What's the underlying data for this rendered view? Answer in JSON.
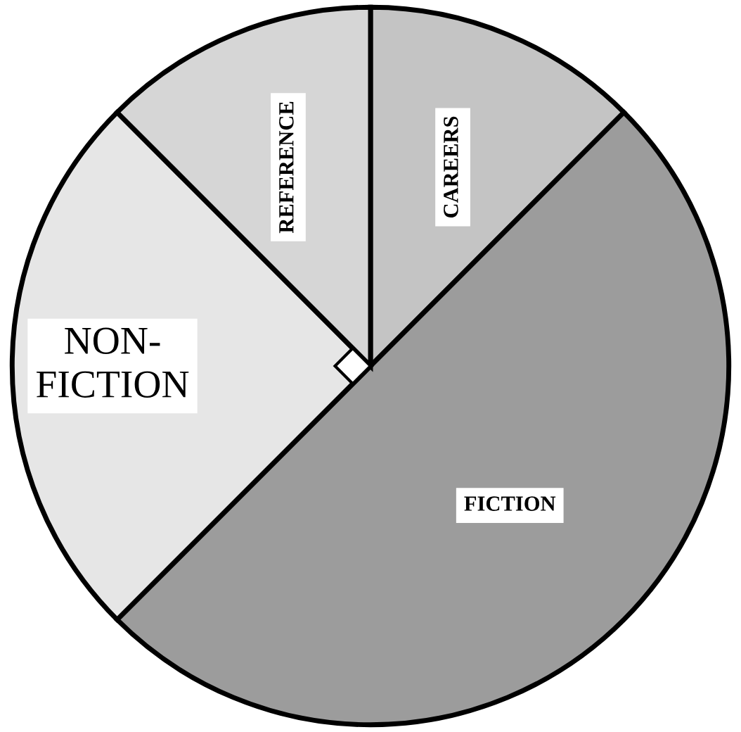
{
  "chart_data": {
    "type": "pie",
    "categories": [
      "CAREERS",
      "FICTION",
      "NON-FICTION",
      "REFERENCE"
    ],
    "values": [
      12.5,
      50,
      25,
      12.5
    ],
    "colors": [
      "#c4c4c4",
      "#9c9c9c",
      "#e6e6e6",
      "#d6d6d6"
    ]
  }
}
